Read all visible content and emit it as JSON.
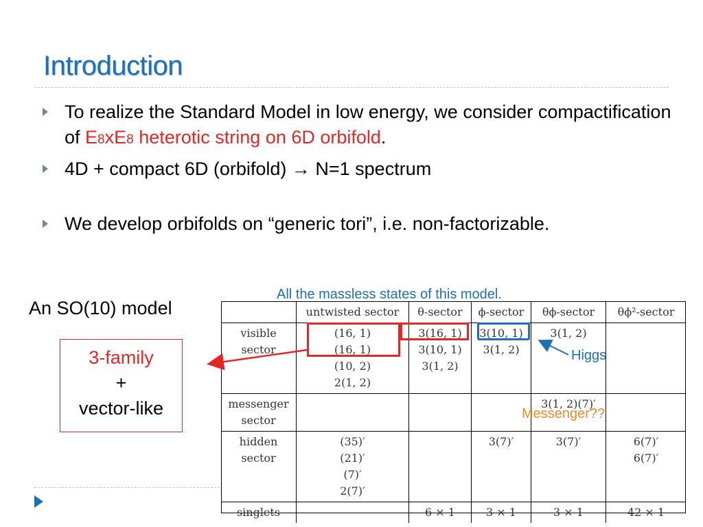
{
  "slide": {
    "title": "Introduction",
    "bullets": {
      "b1_part1": "To realize the Standard Model in low energy, we consider compactification of ",
      "b1_e": "E",
      "b1_sub1": "8",
      "b1_x": "xE",
      "b1_sub2": "8",
      "b1_red_rest": " heterotic string on 6D orbifold",
      "b1_end": ".",
      "b2": "4D + compact 6D (orbifold) → N=1 spectrum",
      "b3": "We develop orbifolds on “generic tori”, i.e. non-factorizable."
    },
    "model_label": "An SO(10) model",
    "family_box": {
      "line1": "3-family",
      "line2": "+",
      "line3": "vector-like"
    },
    "table_caption": "All the massless states of this model.",
    "annotations": {
      "higgs": "Higgs",
      "messenger": "Messenger??"
    },
    "colors": {
      "title": "#1f6fb8",
      "red": "#e32626",
      "blue": "#1f6fb8",
      "orange": "#f28a22"
    }
  },
  "table": {
    "headers": [
      "",
      "untwisted sector",
      "θ-sector",
      "ϕ-sector",
      "θϕ-sector",
      "θϕ²-sector"
    ],
    "rows": {
      "visible": {
        "label1": "visible",
        "label2": "sector",
        "untwisted": [
          "(16, 1)",
          "(16, 1)",
          "(10, 2)",
          "2(1, 2)"
        ],
        "theta": [
          "3(16, 1)",
          "3(10, 1)",
          "3(1, 2)"
        ],
        "phi": [
          "3(10, 1)",
          "3(1, 2)"
        ],
        "thetaphi": [
          "3(1, 2)"
        ],
        "thetaphi2": []
      },
      "messenger": {
        "label1": "messenger",
        "label2": "sector",
        "thetaphi": "3(1, 2)(7)′"
      },
      "hidden": {
        "label1": "hidden",
        "label2": "sector",
        "untwisted": [
          "(35)′",
          "(21)′",
          "(7)′",
          "2(7)′"
        ],
        "phi": "3(7)′",
        "thetaphi": "3(7)′",
        "thetaphi2": [
          "6(7)′",
          "6(7)′"
        ]
      },
      "singlets": {
        "label": "singlets",
        "theta": "6 × 1",
        "phi": "3 × 1",
        "thetaphi": "3 × 1",
        "thetaphi2": "42 × 1"
      }
    }
  }
}
